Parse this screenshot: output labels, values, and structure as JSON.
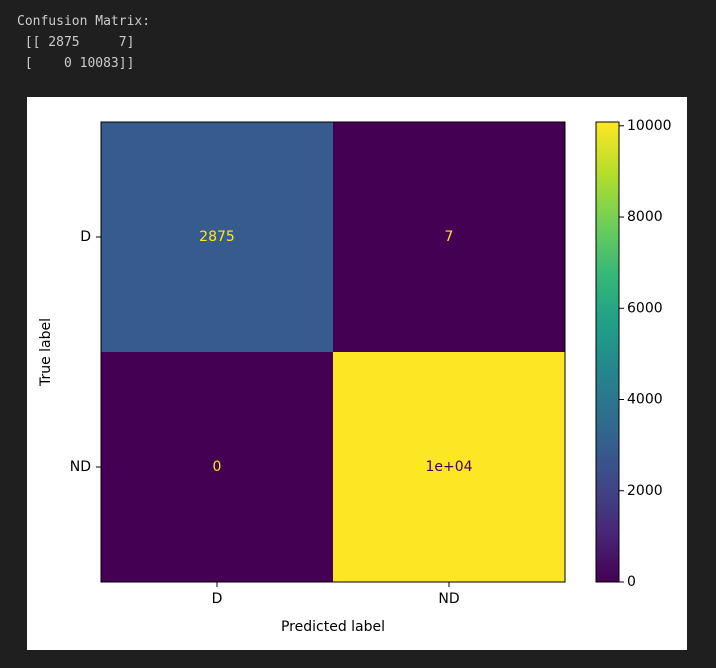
{
  "output_text": [
    "Confusion Matrix:",
    " [[ 2875     7]",
    " [    0 10083]]"
  ],
  "chart_data": {
    "type": "heatmap",
    "x_categories": [
      "D",
      "ND"
    ],
    "y_categories": [
      "D",
      "ND"
    ],
    "values": [
      [
        2875,
        7
      ],
      [
        0,
        10083
      ]
    ],
    "value_labels": [
      [
        "2875",
        "7"
      ],
      [
        "0",
        "1e+04"
      ]
    ],
    "x_label": "Predicted label",
    "y_label": "True label",
    "colormap": "viridis",
    "clim": [
      0,
      10083
    ],
    "cticks": [
      0,
      2000,
      4000,
      6000,
      8000,
      10000
    ]
  }
}
